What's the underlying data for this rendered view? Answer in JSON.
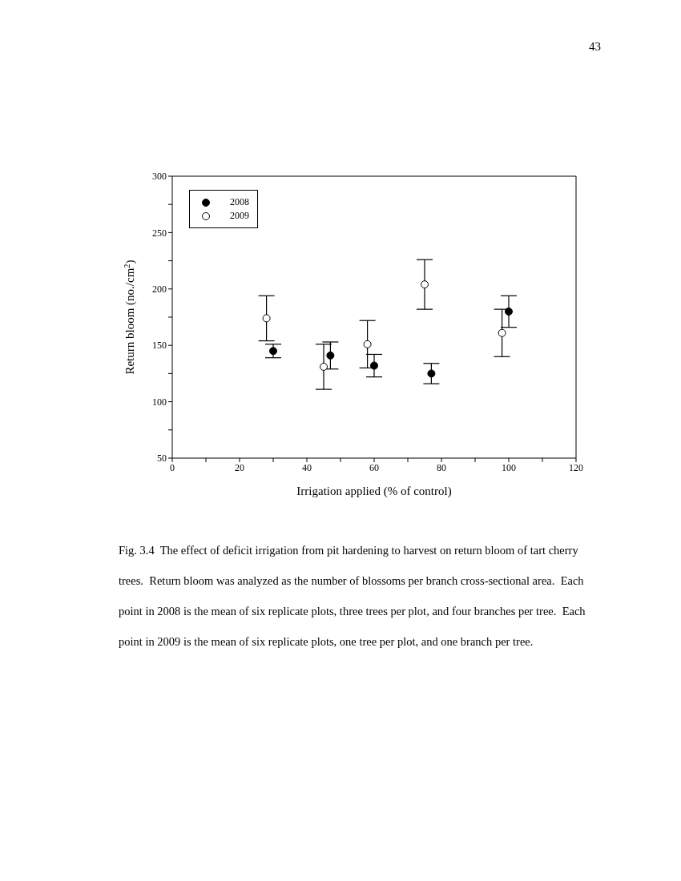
{
  "chart_data": {
    "type": "scatter",
    "xlabel": "Irrigation applied (% of control)",
    "ylabel": "Return bloom (no./cm$^{2}$)",
    "series": [
      {
        "name": "2008",
        "color": "#000000",
        "x": [
          30,
          47,
          60,
          77,
          100
        ],
        "values": [
          145,
          141,
          132,
          125,
          180
        ],
        "errors": [
          6,
          12,
          10,
          9,
          14
        ]
      },
      {
        "name": "2009",
        "color": "#ffffff",
        "x": [
          28,
          45,
          58,
          75,
          98
        ],
        "values": [
          174,
          131,
          151,
          204,
          161
        ],
        "errors": [
          20,
          20,
          21,
          22,
          21
        ]
      }
    ],
    "xlim": [
      0,
      120
    ],
    "xticks": [
      0,
      {
        "value": 10,
        "label": null
      },
      20,
      {
        "value": 30,
        "label": null
      },
      40,
      {
        "value": 50,
        "label": null
      },
      60,
      {
        "value": 70,
        "label": null
      },
      80,
      {
        "value": 90,
        "label": null
      },
      100,
      {
        "value": 110,
        "label": null
      },
      120
    ],
    "ylim": [
      50,
      300
    ],
    "yticks": [
      50,
      {
        "value": 75,
        "label": null
      },
      100,
      {
        "value": 125,
        "label": null
      },
      150,
      {
        "value": 175,
        "label": null
      },
      200,
      {
        "value": 225,
        "label": null
      },
      250,
      {
        "value": 275,
        "label": null
      },
      300
    ],
    "marker": "circle",
    "legend": "top left",
    "grid": false,
    "annotations": [
      "43",
      "Fig. 3.4  The effect of deficit irrigation from pit hardening to harvest on return bloom of tart cherry trees.  Return bloom was analyzed as the number of blossoms per branch cross-sectional area.  Each point in 2008 is the mean of six replicate plots, three trees per plot, and four branches per tree.  Each point in 2009 is the mean of six replicate plots, one tree per plot, and one branch per tree."
    ]
  }
}
